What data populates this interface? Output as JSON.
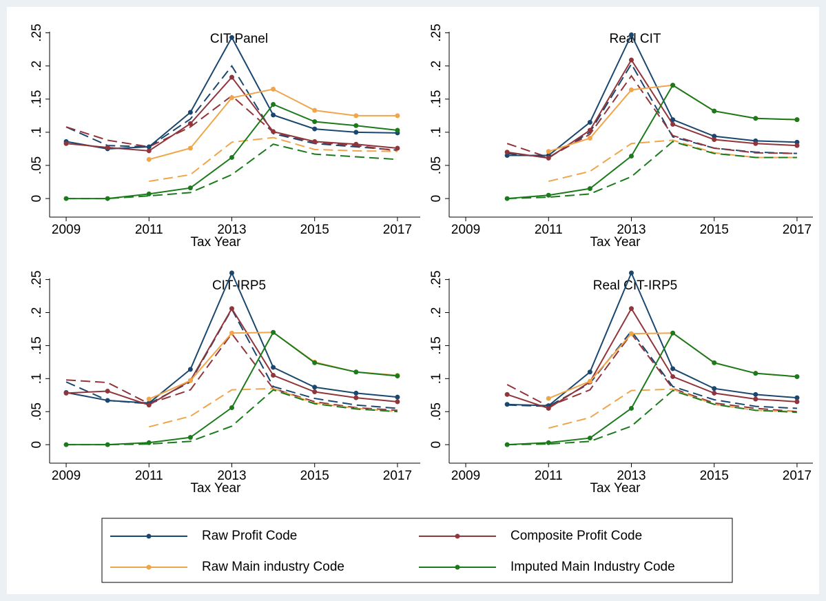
{
  "chart_data": [
    {
      "type": "line",
      "title": "CIT Panel",
      "x_label": "Tax Year",
      "x": [
        2009,
        2010,
        2011,
        2012,
        2013,
        2014,
        2015,
        2016,
        2017
      ],
      "xlim": [
        2008.6,
        2017.55
      ],
      "xticks": [
        2009,
        2011,
        2013,
        2015,
        2017
      ],
      "ylim": [
        -0.028,
        0.26
      ],
      "yticks": [
        0,
        {
          "value": 0.05,
          "label": ".05"
        },
        {
          "value": 0.1,
          "label": ".1"
        },
        {
          "value": 0.15,
          "label": ".15"
        },
        {
          "value": 0.2,
          "label": ".2"
        },
        {
          "value": 0.25,
          "label": ".25"
        }
      ],
      "series": [
        {
          "color": "#1a476f",
          "style": "dashed",
          "values": [
            0.108,
            0.08,
            0.078,
            0.12,
            0.2,
            0.098,
            0.083,
            0.078,
            0.073
          ]
        },
        {
          "color": "#90353b",
          "style": "dashed",
          "values": [
            0.108,
            0.088,
            0.078,
            0.108,
            0.155,
            0.1,
            0.085,
            0.08,
            0.072
          ]
        },
        {
          "color": "#f0a549",
          "style": "dashed",
          "values": [
            null,
            null,
            0.026,
            0.036,
            0.085,
            0.092,
            0.074,
            0.072,
            0.071
          ]
        },
        {
          "color": "#1b7a1b",
          "style": "dashed",
          "values": [
            0,
            0,
            0.004,
            0.009,
            0.036,
            0.082,
            0.067,
            0.063,
            0.059
          ]
        },
        {
          "color": "#1a476f",
          "style": "solid",
          "values": [
            0.086,
            0.075,
            0.078,
            0.13,
            0.243,
            0.126,
            0.105,
            0.1,
            0.099
          ]
        },
        {
          "color": "#90353b",
          "style": "solid",
          "values": [
            0.083,
            0.077,
            0.072,
            0.113,
            0.183,
            0.101,
            0.086,
            0.082,
            0.076
          ]
        },
        {
          "color": "#f0a549",
          "style": "solid",
          "values": [
            null,
            null,
            0.059,
            0.076,
            0.152,
            0.165,
            0.133,
            0.125,
            0.125
          ]
        },
        {
          "color": "#1b7a1b",
          "style": "solid",
          "values": [
            0,
            0,
            0.007,
            0.016,
            0.062,
            0.142,
            0.116,
            0.11,
            0.103
          ]
        }
      ]
    },
    {
      "type": "line",
      "title": "Real CIT",
      "x_label": "Tax Year",
      "x": [
        2009,
        2010,
        2011,
        2012,
        2013,
        2014,
        2015,
        2016,
        2017
      ],
      "xlim": [
        2008.6,
        2017.55
      ],
      "xticks": [
        2009,
        2011,
        2013,
        2015,
        2017
      ],
      "ylim": [
        -0.028,
        0.26
      ],
      "yticks": [
        0,
        {
          "value": 0.05,
          "label": ".05"
        },
        {
          "value": 0.1,
          "label": ".1"
        },
        {
          "value": 0.15,
          "label": ".15"
        },
        {
          "value": 0.2,
          "label": ".2"
        },
        {
          "value": 0.25,
          "label": ".25"
        }
      ],
      "series": [
        {
          "color": "#1a476f",
          "style": "dashed",
          "values": [
            null,
            0.068,
            0.062,
            0.1,
            0.203,
            0.093,
            0.076,
            0.07,
            0.068
          ]
        },
        {
          "color": "#90353b",
          "style": "dashed",
          "values": [
            null,
            0.083,
            0.062,
            0.097,
            0.185,
            0.095,
            0.076,
            0.069,
            0.068
          ]
        },
        {
          "color": "#f0a549",
          "style": "dashed",
          "values": [
            null,
            null,
            0.026,
            0.041,
            0.083,
            0.088,
            0.069,
            0.062,
            0.062
          ]
        },
        {
          "color": "#1b7a1b",
          "style": "dashed",
          "values": [
            null,
            0,
            0.002,
            0.007,
            0.033,
            0.086,
            0.068,
            0.062,
            0.062
          ]
        },
        {
          "color": "#1a476f",
          "style": "solid",
          "values": [
            null,
            0.065,
            0.065,
            0.115,
            0.247,
            0.119,
            0.094,
            0.087,
            0.085
          ]
        },
        {
          "color": "#90353b",
          "style": "solid",
          "values": [
            null,
            0.07,
            0.061,
            0.103,
            0.209,
            0.112,
            0.089,
            0.083,
            0.08
          ]
        },
        {
          "color": "#f0a549",
          "style": "solid",
          "values": [
            null,
            null,
            0.071,
            0.091,
            0.164,
            0.171,
            0.132,
            0.121,
            0.119
          ]
        },
        {
          "color": "#1b7a1b",
          "style": "solid",
          "values": [
            null,
            0,
            0.005,
            0.015,
            0.064,
            0.171,
            0.132,
            0.121,
            0.119
          ]
        }
      ]
    },
    {
      "type": "line",
      "title": "CIT-IRP5",
      "x_label": "Tax Year",
      "x": [
        2009,
        2010,
        2011,
        2012,
        2013,
        2014,
        2015,
        2016,
        2017
      ],
      "xlim": [
        2008.6,
        2017.55
      ],
      "xticks": [
        2009,
        2011,
        2013,
        2015,
        2017
      ],
      "ylim": [
        -0.028,
        0.26
      ],
      "yticks": [
        0,
        {
          "value": 0.05,
          "label": ".05"
        },
        {
          "value": 0.1,
          "label": ".1"
        },
        {
          "value": 0.15,
          "label": ".15"
        },
        {
          "value": 0.2,
          "label": ".2"
        },
        {
          "value": 0.25,
          "label": ".25"
        }
      ],
      "series": [
        {
          "color": "#1a476f",
          "style": "dashed",
          "values": [
            0.095,
            0.067,
            0.062,
            0.095,
            0.205,
            0.088,
            0.07,
            0.06,
            0.055
          ]
        },
        {
          "color": "#90353b",
          "style": "dashed",
          "values": [
            0.098,
            0.094,
            0.062,
            0.083,
            0.168,
            0.085,
            0.065,
            0.056,
            0.052
          ]
        },
        {
          "color": "#f0a549",
          "style": "dashed",
          "values": [
            null,
            null,
            0.027,
            0.043,
            0.083,
            0.085,
            0.063,
            0.055,
            0.05
          ]
        },
        {
          "color": "#1b7a1b",
          "style": "dashed",
          "values": [
            0,
            0,
            0.001,
            0.005,
            0.028,
            0.083,
            0.062,
            0.054,
            0.05
          ]
        },
        {
          "color": "#1a476f",
          "style": "solid",
          "values": [
            0.079,
            0.067,
            0.063,
            0.114,
            0.26,
            0.117,
            0.087,
            0.078,
            0.072
          ]
        },
        {
          "color": "#90353b",
          "style": "solid",
          "values": [
            0.078,
            0.081,
            0.06,
            0.097,
            0.206,
            0.105,
            0.08,
            0.071,
            0.065
          ]
        },
        {
          "color": "#f0a549",
          "style": "solid",
          "values": [
            null,
            null,
            0.069,
            0.097,
            0.169,
            0.17,
            0.125,
            0.11,
            0.105
          ]
        },
        {
          "color": "#1b7a1b",
          "style": "solid",
          "values": [
            0,
            0,
            0.003,
            0.011,
            0.056,
            0.17,
            0.124,
            0.11,
            0.104
          ]
        }
      ]
    },
    {
      "type": "line",
      "title": "Real CIT-IRP5",
      "x_label": "Tax Year",
      "x": [
        2009,
        2010,
        2011,
        2012,
        2013,
        2014,
        2015,
        2016,
        2017
      ],
      "xlim": [
        2008.6,
        2017.55
      ],
      "xticks": [
        2009,
        2011,
        2013,
        2015,
        2017
      ],
      "ylim": [
        -0.028,
        0.26
      ],
      "yticks": [
        0,
        {
          "value": 0.05,
          "label": ".05"
        },
        {
          "value": 0.1,
          "label": ".1"
        },
        {
          "value": 0.15,
          "label": ".15"
        },
        {
          "value": 0.2,
          "label": ".2"
        },
        {
          "value": 0.25,
          "label": ".25"
        }
      ],
      "series": [
        {
          "color": "#1a476f",
          "style": "dashed",
          "values": [
            null,
            0.06,
            0.058,
            0.093,
            0.172,
            0.088,
            0.068,
            0.058,
            0.055
          ]
        },
        {
          "color": "#90353b",
          "style": "dashed",
          "values": [
            null,
            0.091,
            0.058,
            0.083,
            0.168,
            0.085,
            0.063,
            0.055,
            0.05
          ]
        },
        {
          "color": "#f0a549",
          "style": "dashed",
          "values": [
            null,
            null,
            0.025,
            0.041,
            0.082,
            0.084,
            0.061,
            0.052,
            0.05
          ]
        },
        {
          "color": "#1b7a1b",
          "style": "dashed",
          "values": [
            null,
            0,
            0.001,
            0.005,
            0.028,
            0.082,
            0.061,
            0.052,
            0.049
          ]
        },
        {
          "color": "#1a476f",
          "style": "solid",
          "values": [
            null,
            0.061,
            0.059,
            0.11,
            0.26,
            0.115,
            0.085,
            0.076,
            0.071
          ]
        },
        {
          "color": "#90353b",
          "style": "solid",
          "values": [
            null,
            0.076,
            0.055,
            0.095,
            0.206,
            0.103,
            0.078,
            0.069,
            0.065
          ]
        },
        {
          "color": "#f0a549",
          "style": "solid",
          "values": [
            null,
            null,
            0.07,
            0.096,
            0.168,
            0.169,
            0.124,
            0.108,
            0.103
          ]
        },
        {
          "color": "#1b7a1b",
          "style": "solid",
          "values": [
            null,
            0,
            0.003,
            0.01,
            0.055,
            0.169,
            0.124,
            0.108,
            0.103
          ]
        }
      ]
    }
  ],
  "legend": [
    {
      "name": "Raw Profit Code",
      "color": "#1a476f"
    },
    {
      "name": "Composite Profit Code",
      "color": "#90353b"
    },
    {
      "name": "Raw Main industry Code",
      "color": "#f0a549"
    },
    {
      "name": "Imputed Main Industry Code",
      "color": "#1b7a1b"
    }
  ]
}
